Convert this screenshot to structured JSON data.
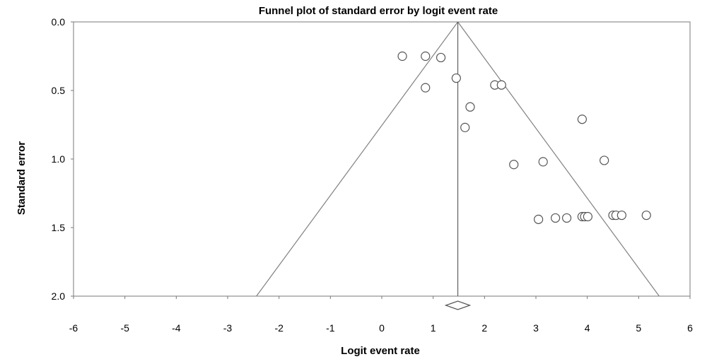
{
  "chart_data": {
    "type": "scatter",
    "title": "Funnel plot of standard error by logit event rate",
    "xlabel": "Logit event rate",
    "ylabel": "Standard error",
    "xlim": [
      -6,
      6
    ],
    "ylim": [
      2.0,
      0.0
    ],
    "y_inverted": true,
    "x_ticks": [
      "-6",
      "-5",
      "-4",
      "-3",
      "-2",
      "-1",
      "0",
      "1",
      "2",
      "3",
      "4",
      "5",
      "6"
    ],
    "y_ticks": [
      "0.0",
      "0.5",
      "1.0",
      "1.5",
      "2.0"
    ],
    "summary_effect": 1.48,
    "funnel_se_max": 2.0,
    "funnel_multiplier": 1.96,
    "points": [
      {
        "x": 0.4,
        "y": 0.25
      },
      {
        "x": 0.85,
        "y": 0.25
      },
      {
        "x": 1.15,
        "y": 0.26
      },
      {
        "x": 1.45,
        "y": 0.41
      },
      {
        "x": 0.85,
        "y": 0.48
      },
      {
        "x": 2.2,
        "y": 0.46
      },
      {
        "x": 2.33,
        "y": 0.46
      },
      {
        "x": 1.72,
        "y": 0.62
      },
      {
        "x": 1.62,
        "y": 0.77
      },
      {
        "x": 3.9,
        "y": 0.71
      },
      {
        "x": 2.57,
        "y": 1.04
      },
      {
        "x": 3.14,
        "y": 1.02
      },
      {
        "x": 4.33,
        "y": 1.01
      },
      {
        "x": 3.05,
        "y": 1.44
      },
      {
        "x": 3.38,
        "y": 1.43
      },
      {
        "x": 3.6,
        "y": 1.43
      },
      {
        "x": 3.9,
        "y": 1.42
      },
      {
        "x": 3.95,
        "y": 1.42
      },
      {
        "x": 4.01,
        "y": 1.42
      },
      {
        "x": 4.5,
        "y": 1.41
      },
      {
        "x": 4.56,
        "y": 1.41
      },
      {
        "x": 4.67,
        "y": 1.41
      },
      {
        "x": 5.15,
        "y": 1.41
      }
    ],
    "grid": false,
    "legend": "none",
    "colors": {
      "frame": "#7a7a7a",
      "funnel": "#808080",
      "point_stroke": "#555555"
    }
  }
}
